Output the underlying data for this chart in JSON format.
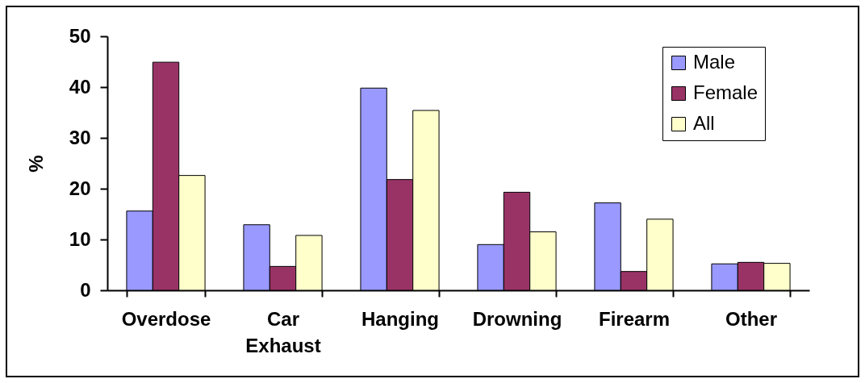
{
  "chart_data": {
    "type": "bar",
    "categories": [
      "Overdose",
      "Car Exhaust",
      "Hanging",
      "Drowning",
      "Firearm",
      "Other"
    ],
    "series": [
      {
        "name": "Male",
        "color": "#9999ff",
        "values": [
          15.6,
          12.9,
          39.8,
          9.0,
          17.2,
          5.2
        ]
      },
      {
        "name": "Female",
        "color": "#993366",
        "values": [
          44.9,
          4.7,
          21.8,
          19.3,
          3.7,
          5.5
        ]
      },
      {
        "name": "All",
        "color": "#ffffcc",
        "values": [
          22.6,
          10.8,
          35.4,
          11.5,
          14.0,
          5.3
        ]
      }
    ],
    "ylabel": "%",
    "ylim": [
      0,
      50
    ],
    "yticks": [
      0,
      10,
      20,
      30,
      40,
      50
    ],
    "grid": false,
    "legend": "top right"
  }
}
